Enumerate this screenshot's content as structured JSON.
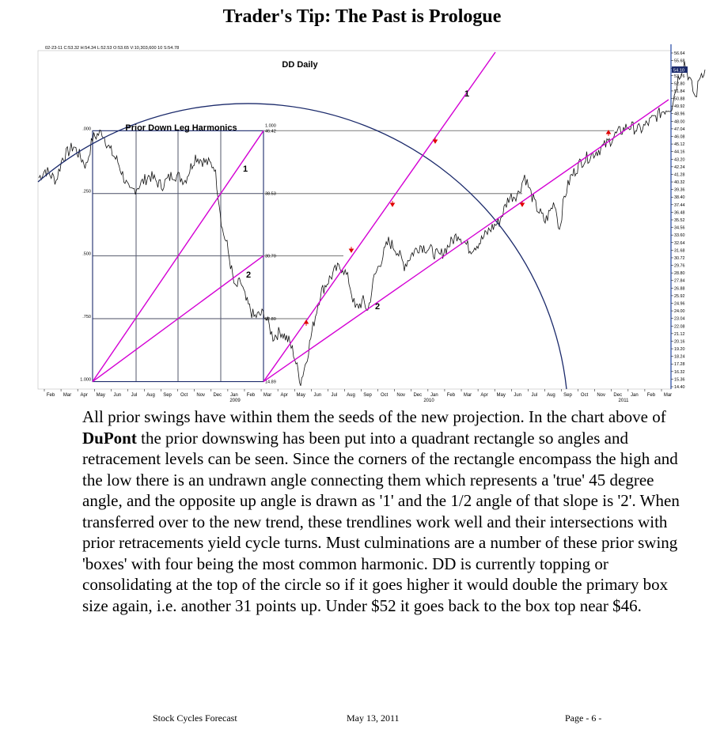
{
  "page": {
    "title": "Trader's Tip: The Past is Prologue",
    "body": {
      "intro": "All prior swings have within them the seeds of the new projection. In the chart above of ",
      "company": "DuPont",
      "rest": " the prior downswing has been put into a quadrant rectangle so angles and retracement levels can be seen. Since the corners of the rectangle encompass the high and the low there is an undrawn angle connecting them which represents a 'true' 45 degree angle, and the opposite up angle is drawn as '1' and the 1/2 angle of that slope is '2'. When transferred over to the new trend, these trendlines work well and their intersections with prior retracements yield cycle turns. Must culminations are a number of these prior swing 'boxes' with four being the most common harmonic. DD is currently topping or consolidating at the top of the circle so if it goes higher it would double the primary box size again, i.e. another 31 points up. Under $52 it goes back to the box top near $46."
    },
    "footer": {
      "left": "Stock Cycles Forecast",
      "center": "May 13, 2011",
      "right": "Page - 6 -"
    }
  },
  "chart_data": {
    "type": "line",
    "title": "DD Daily",
    "header": "02-23-11   C:53.32   H:54.34   L:52.53   O:53.65   V:10,303,600   10   S:54.78",
    "price_ticks": [
      "56.64",
      "55.68",
      "54.72",
      "53.76",
      "52.80",
      "51.84",
      "50.88",
      "49.92",
      "48.96",
      "48.00",
      "47.04",
      "46.08",
      "45.12",
      "44.16",
      "43.20",
      "42.24",
      "41.28",
      "40.32",
      "39.36",
      "38.40",
      "37.44",
      "36.48",
      "35.52",
      "34.56",
      "33.60",
      "32.64",
      "31.68",
      "30.72",
      "29.76",
      "28.80",
      "27.84",
      "26.88",
      "25.92",
      "24.96",
      "24.00",
      "23.04",
      "22.08",
      "21.12",
      "20.16",
      "19.20",
      "18.24",
      "17.28",
      "16.32",
      "15.36",
      "14.40"
    ],
    "last_price_tag": "54.10",
    "month_ticks": [
      "Feb",
      "Mar",
      "Apr",
      "May",
      "Jun",
      "Jul",
      "Aug",
      "Sep",
      "Oct",
      "Nov",
      "Dec",
      "Jan",
      "Feb",
      "Mar",
      "Apr",
      "May",
      "Jun",
      "Jul",
      "Aug",
      "Sep",
      "Oct",
      "Nov",
      "Dec",
      "Jan",
      "Feb",
      "Mar",
      "Apr",
      "May",
      "Jun",
      "Jul",
      "Aug",
      "Sep",
      "Oct",
      "Nov",
      "Dec",
      "Jan",
      "Feb",
      "Mar"
    ],
    "year_ticks": [
      "2009",
      "2010",
      "2011"
    ],
    "y_range": [
      14.4,
      56.64
    ],
    "price_path_keypoints": [
      [
        0,
        40.5
      ],
      [
        8,
        41.5
      ],
      [
        22,
        40.2
      ],
      [
        30,
        43.0
      ],
      [
        44,
        44.5
      ],
      [
        60,
        42.0
      ],
      [
        68,
        45.5
      ],
      [
        80,
        46.3
      ],
      [
        90,
        44.0
      ],
      [
        100,
        42.5
      ],
      [
        115,
        38.6
      ],
      [
        125,
        39.4
      ],
      [
        140,
        40.8
      ],
      [
        155,
        39.5
      ],
      [
        170,
        41.0
      ],
      [
        185,
        40.2
      ],
      [
        198,
        43.2
      ],
      [
        210,
        42.5
      ],
      [
        222,
        42.0
      ],
      [
        228,
        37.5
      ],
      [
        232,
        34.0
      ],
      [
        238,
        32.0
      ],
      [
        248,
        26.5
      ],
      [
        255,
        27.5
      ],
      [
        262,
        25.0
      ],
      [
        272,
        23.0
      ],
      [
        285,
        23.5
      ],
      [
        296,
        20.5
      ],
      [
        306,
        21.2
      ],
      [
        316,
        20.0
      ],
      [
        322,
        18.5
      ],
      [
        328,
        16.0
      ],
      [
        331,
        14.9
      ],
      [
        338,
        17.5
      ],
      [
        348,
        22.5
      ],
      [
        356,
        26.0
      ],
      [
        366,
        27.6
      ],
      [
        376,
        29.0
      ],
      [
        384,
        29.3
      ],
      [
        392,
        27.5
      ],
      [
        400,
        24.0
      ],
      [
        410,
        25.0
      ],
      [
        416,
        23.8
      ],
      [
        424,
        28.0
      ],
      [
        432,
        30.0
      ],
      [
        442,
        32.5
      ],
      [
        452,
        31.5
      ],
      [
        462,
        29.5
      ],
      [
        472,
        31.0
      ],
      [
        482,
        32.0
      ],
      [
        494,
        31.5
      ],
      [
        506,
        30.6
      ],
      [
        518,
        32.0
      ],
      [
        530,
        33.5
      ],
      [
        545,
        31.5
      ],
      [
        558,
        32.5
      ],
      [
        570,
        34.0
      ],
      [
        582,
        35.0
      ],
      [
        594,
        38.0
      ],
      [
        606,
        38.5
      ],
      [
        614,
        40.8
      ],
      [
        622,
        38.5
      ],
      [
        628,
        37.0
      ],
      [
        640,
        35.0
      ],
      [
        652,
        37.5
      ],
      [
        658,
        34.0
      ],
      [
        664,
        38.0
      ],
      [
        672,
        40.5
      ],
      [
        685,
        42.5
      ],
      [
        700,
        43.5
      ],
      [
        715,
        44.5
      ],
      [
        730,
        46.0
      ],
      [
        745,
        47.0
      ],
      [
        760,
        46.5
      ],
      [
        775,
        47.8
      ],
      [
        790,
        49.0
      ],
      [
        800,
        49.5
      ],
      [
        808,
        53.0
      ],
      [
        816,
        55.0
      ],
      [
        822,
        53.0
      ],
      [
        830,
        50.5
      ],
      [
        836,
        53.5
      ],
      [
        842,
        54.1
      ]
    ],
    "box_levels": [
      {
        "ratio": ".000",
        "price": "46.42"
      },
      {
        "ratio": ".250",
        "price": "38.53"
      },
      {
        "ratio": ".500",
        "price": "30.70"
      },
      {
        "ratio": ".750",
        "price": "22.80"
      },
      {
        "ratio": "1.000",
        "price": "14.89"
      }
    ],
    "box_right_ratio": "1.000",
    "annotations": [
      "Prior Down Leg Harmonics",
      "1",
      "2",
      "1",
      "2"
    ]
  },
  "colors": {
    "magenta": "#d400d4",
    "navy": "#1b2a6b",
    "grid_gray": "#8c8c8c",
    "arrow_red": "#e00000",
    "price": "#111111"
  }
}
